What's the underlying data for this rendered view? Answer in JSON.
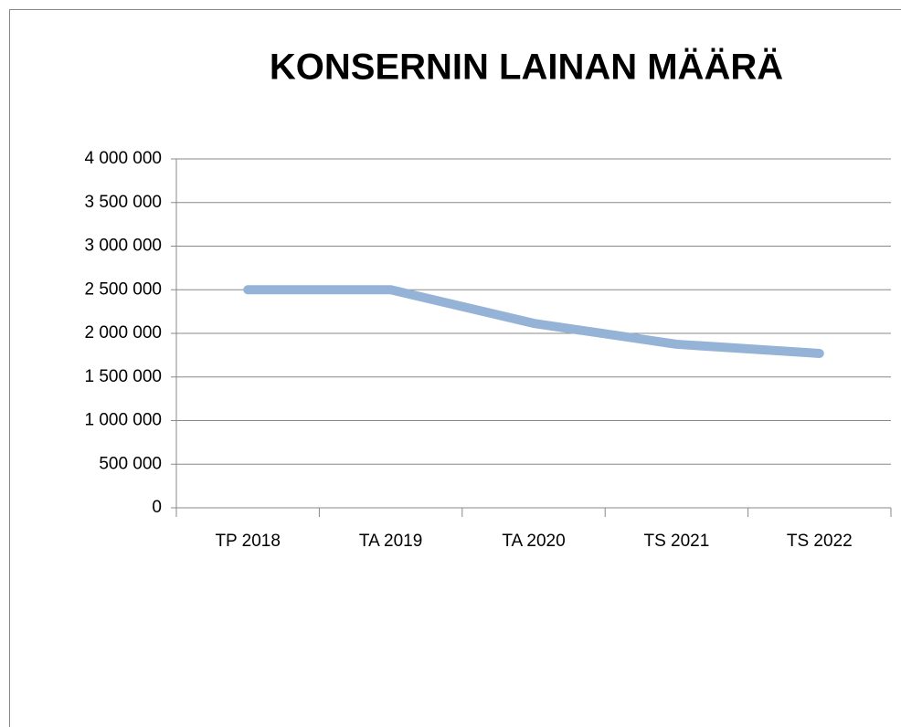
{
  "chart_data": {
    "type": "line",
    "title": "KONSERNIN LAINAN MÄÄRÄ",
    "categories": [
      "TP 2018",
      "TA 2019",
      "TA 2020",
      "TS 2021",
      "TS 2022"
    ],
    "series": [
      {
        "name": "Konsernin lainan määrä",
        "color": "#95b3d7",
        "values": [
          2500000,
          2500000,
          2115000,
          1875000,
          1770000
        ]
      }
    ],
    "ylim": [
      0,
      4000000
    ],
    "yticks": [
      0,
      {
        "value": 500000,
        "label": "500 000"
      },
      {
        "value": 1000000,
        "label": "1 000 000"
      },
      {
        "value": 1500000,
        "label": "1 500 000"
      },
      {
        "value": 2000000,
        "label": "2 000 000"
      },
      {
        "value": 2500000,
        "label": "2 500 000"
      },
      {
        "value": 3000000,
        "label": "3 000 000"
      },
      {
        "value": 3500000,
        "label": "3 500 000"
      },
      {
        "value": 4000000,
        "label": "4 000 000"
      }
    ],
    "grid": true,
    "legend": false
  }
}
